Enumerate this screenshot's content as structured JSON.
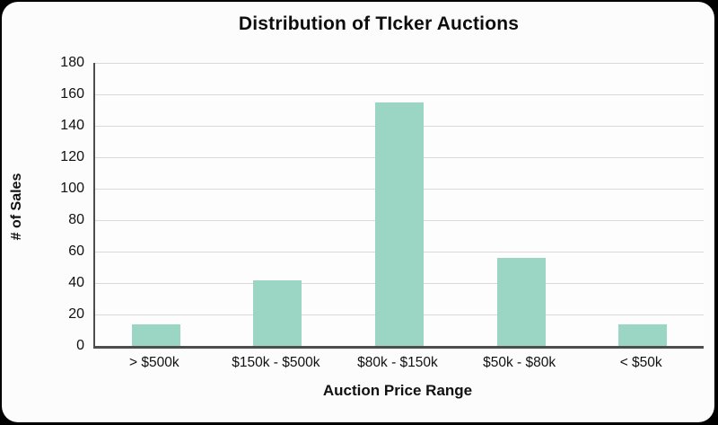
{
  "window": {
    "background_color": "#000000",
    "card_background_color": "#fcfcfc"
  },
  "chart_data": {
    "type": "bar",
    "title": "Distribution of TIcker Auctions",
    "categories": [
      "> $500k",
      "$150k - $500k",
      "$80k - $150k",
      "$50k - $80k",
      "< $50k"
    ],
    "values": [
      14,
      42,
      155,
      56,
      14
    ],
    "xlabel": "Auction Price Range",
    "ylabel": "# of Sales",
    "ylim": [
      0,
      180
    ],
    "yticks": [
      0,
      20,
      40,
      60,
      80,
      100,
      120,
      140,
      160,
      180
    ],
    "grid": true,
    "legend_position": "none",
    "bar_color": "#9BD5C4",
    "gridline_color": "#d9d9d9",
    "axis_line_color": "#4d4d4d",
    "text_color": "#111111",
    "title_color": "#0d0d0d"
  }
}
